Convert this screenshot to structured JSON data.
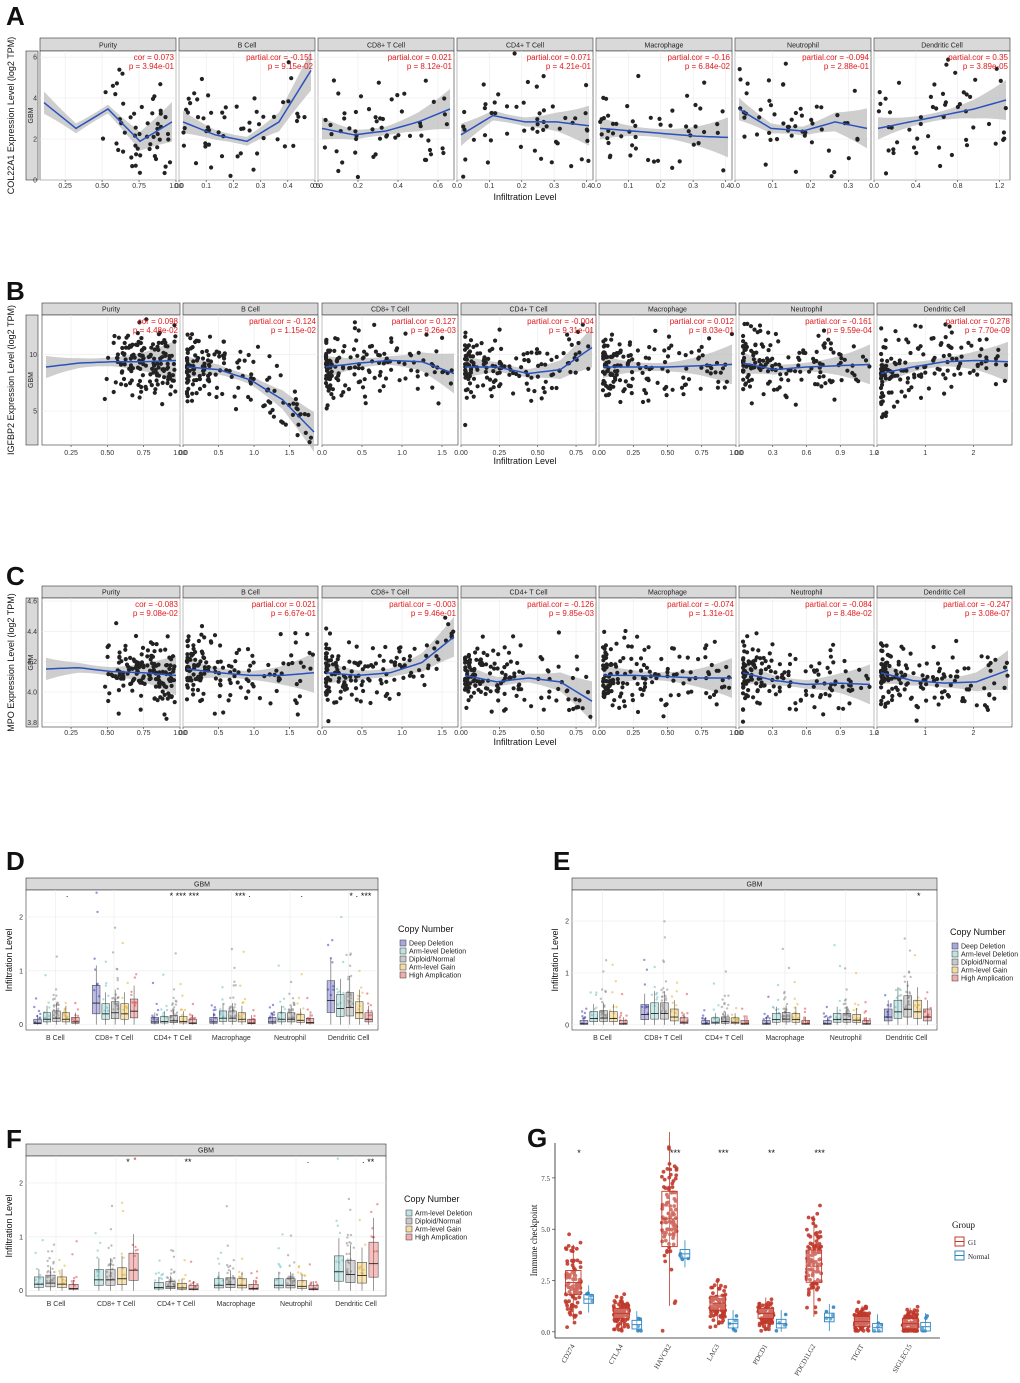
{
  "chart_data": [
    {
      "panel": "A",
      "type": "scatter",
      "ylabel": "COL22A1 Expression Level (log2 TPM)",
      "xlabel": "Infiltration Level",
      "row_label": "GBM",
      "yticks": [
        "0",
        "2",
        "4",
        "6"
      ],
      "ylim": [
        0,
        6.3
      ],
      "facets": [
        {
          "name": "Purity",
          "stat1": "cor = 0.073",
          "stat2": "p = 3.94e-01",
          "xticks": [
            "0.25",
            "0.50",
            "0.75",
            "1.00"
          ],
          "xlim": [
            0.08,
            1.0
          ],
          "xvals": [
            0.25,
            0.5,
            0.75,
            1.0
          ]
        },
        {
          "name": "B Cell",
          "stat1": "partial.cor = -0.151",
          "stat2": "p = 9.15e-02",
          "xticks": [
            "0.0",
            "0.1",
            "0.2",
            "0.3",
            "0.4",
            "0.5"
          ],
          "xlim": [
            0,
            0.5
          ],
          "xvals": [
            0,
            0.1,
            0.2,
            0.3,
            0.4,
            0.5
          ]
        },
        {
          "name": "CD8+ T Cell",
          "stat1": "partial.cor = 0.021",
          "stat2": "p = 8.12e-01",
          "xticks": [
            "0.0",
            "0.2",
            "0.4",
            "0.6"
          ],
          "xlim": [
            0,
            0.68
          ],
          "xvals": [
            0,
            0.2,
            0.4,
            0.6
          ]
        },
        {
          "name": "CD4+ T Cell",
          "stat1": "partial.cor = 0.071",
          "stat2": "p = 4.21e-01",
          "xticks": [
            "0.0",
            "0.1",
            "0.2",
            "0.3",
            "0.4"
          ],
          "xlim": [
            0,
            0.42
          ],
          "xvals": [
            0,
            0.1,
            0.2,
            0.3,
            0.4
          ]
        },
        {
          "name": "Macrophage",
          "stat1": "partial.cor = -0.16",
          "stat2": "p = 6.84e-02",
          "xticks": [
            "0.0",
            "0.1",
            "0.2",
            "0.3",
            "0.4"
          ],
          "xlim": [
            0,
            0.42
          ],
          "xvals": [
            0,
            0.1,
            0.2,
            0.3,
            0.4
          ]
        },
        {
          "name": "Neutrophil",
          "stat1": "partial.cor = -0.094",
          "stat2": "p = 2.88e-01",
          "xticks": [
            "0.0",
            "0.1",
            "0.2",
            "0.3"
          ],
          "xlim": [
            0,
            0.36
          ],
          "xvals": [
            0,
            0.1,
            0.2,
            0.3
          ]
        },
        {
          "name": "Dendritic Cell",
          "stat1": "partial.cor = 0.35",
          "stat2": "p = 3.89e-05",
          "xticks": [
            "0.0",
            "0.4",
            "0.8",
            "1.2"
          ],
          "xlim": [
            0,
            1.3
          ],
          "xvals": [
            0,
            0.4,
            0.8,
            1.2
          ]
        }
      ]
    },
    {
      "panel": "B",
      "type": "scatter",
      "ylabel": "IGFBP2 Expression Level (log2 TPM)",
      "xlabel": "Infiltration Level",
      "row_label": "GBM",
      "yticks": [
        "5",
        "10"
      ],
      "ylim": [
        2,
        13.5
      ],
      "facets": [
        {
          "name": "Purity",
          "stat1": "cor = 0.098",
          "stat2": "p = 4.48e-02",
          "xticks": [
            "0.25",
            "0.50",
            "0.75",
            "1.00"
          ],
          "xlim": [
            0.05,
            1.0
          ],
          "xvals": [
            0.25,
            0.5,
            0.75,
            1.0
          ]
        },
        {
          "name": "B Cell",
          "stat1": "partial.cor = -0.124",
          "stat2": "p = 1.15e-02",
          "xticks": [
            "0.0",
            "0.5",
            "1.0",
            "1.5"
          ],
          "xlim": [
            0,
            1.9
          ],
          "xvals": [
            0,
            0.5,
            1.0,
            1.5
          ]
        },
        {
          "name": "CD8+ T Cell",
          "stat1": "partial.cor = 0.127",
          "stat2": "p = 9.26e-03",
          "xticks": [
            "0.0",
            "0.5",
            "1.0",
            "1.5"
          ],
          "xlim": [
            0,
            1.7
          ],
          "xvals": [
            0,
            0.5,
            1.0,
            1.5
          ]
        },
        {
          "name": "CD4+ T Cell",
          "stat1": "partial.cor = -0.004",
          "stat2": "p = 9.31e-01",
          "xticks": [
            "0.00",
            "0.25",
            "0.50",
            "0.75"
          ],
          "xlim": [
            0,
            0.88
          ],
          "xvals": [
            0,
            0.25,
            0.5,
            0.75
          ]
        },
        {
          "name": "Macrophage",
          "stat1": "partial.cor = 0.012",
          "stat2": "p = 8.03e-01",
          "xticks": [
            "0.00",
            "0.25",
            "0.50",
            "0.75",
            "1.00"
          ],
          "xlim": [
            0,
            1.0
          ],
          "xvals": [
            0,
            0.25,
            0.5,
            0.75,
            1.0
          ]
        },
        {
          "name": "Neutrophil",
          "stat1": "partial.cor = -0.161",
          "stat2": "p = 9.59e-04",
          "xticks": [
            "0.0",
            "0.3",
            "0.6",
            "0.9",
            "1.2"
          ],
          "xlim": [
            0,
            1.2
          ],
          "xvals": [
            0,
            0.3,
            0.6,
            0.9,
            1.2
          ]
        },
        {
          "name": "Dendritic Cell",
          "stat1": "partial.cor = 0.278",
          "stat2": "p = 7.70e-09",
          "xticks": [
            "0",
            "1",
            "2"
          ],
          "xlim": [
            0,
            2.8
          ],
          "xvals": [
            0,
            1,
            2
          ]
        }
      ]
    },
    {
      "panel": "C",
      "type": "scatter",
      "ylabel": "MPO Expression Level (log2 TPM)",
      "xlabel": "Infiltration Level",
      "row_label": "GBM",
      "yticks": [
        "3.8",
        "4.0",
        "4.2",
        "4.4",
        "4.6"
      ],
      "ylim": [
        3.77,
        4.62
      ],
      "facets": [
        {
          "name": "Purity",
          "stat1": "cor = -0.083",
          "stat2": "p = 9.08e-02",
          "xticks": [
            "0.25",
            "0.50",
            "0.75",
            "1.00"
          ],
          "xlim": [
            0.05,
            1.0
          ],
          "xvals": [
            0.25,
            0.5,
            0.75,
            1.0
          ]
        },
        {
          "name": "B Cell",
          "stat1": "partial.cor = 0.021",
          "stat2": "p = 6.67e-01",
          "xticks": [
            "0.0",
            "0.5",
            "1.0",
            "1.5"
          ],
          "xlim": [
            0,
            1.9
          ],
          "xvals": [
            0,
            0.5,
            1.0,
            1.5
          ]
        },
        {
          "name": "CD8+ T Cell",
          "stat1": "partial.cor = -0.003",
          "stat2": "p = 9.46e-01",
          "xticks": [
            "0.0",
            "0.5",
            "1.0",
            "1.5"
          ],
          "xlim": [
            0,
            1.7
          ],
          "xvals": [
            0,
            0.5,
            1.0,
            1.5
          ]
        },
        {
          "name": "CD4+ T Cell",
          "stat1": "partial.cor = -0.126",
          "stat2": "p = 9.85e-03",
          "xticks": [
            "0.00",
            "0.25",
            "0.50",
            "0.75"
          ],
          "xlim": [
            0,
            0.88
          ],
          "xvals": [
            0,
            0.25,
            0.5,
            0.75
          ]
        },
        {
          "name": "Macrophage",
          "stat1": "partial.cor = -0.074",
          "stat2": "p = 1.31e-01",
          "xticks": [
            "0.00",
            "0.25",
            "0.50",
            "0.75",
            "1.00"
          ],
          "xlim": [
            0,
            1.0
          ],
          "xvals": [
            0,
            0.25,
            0.5,
            0.75,
            1.0
          ]
        },
        {
          "name": "Neutrophil",
          "stat1": "partial.cor = -0.084",
          "stat2": "p = 8.48e-02",
          "xticks": [
            "0.0",
            "0.3",
            "0.6",
            "0.9",
            "1.2"
          ],
          "xlim": [
            0,
            1.2
          ],
          "xvals": [
            0,
            0.3,
            0.6,
            0.9,
            1.2
          ]
        },
        {
          "name": "Dendritic Cell",
          "stat1": "partial.cor = -0.247",
          "stat2": "p = 3.08e-07",
          "xticks": [
            "0",
            "1",
            "2"
          ],
          "xlim": [
            0,
            2.8
          ],
          "xvals": [
            0,
            1,
            2
          ]
        }
      ]
    },
    {
      "panel": "D",
      "type": "box",
      "strip": "GBM",
      "ylabel": "Infiltration Level",
      "yticks": [
        "0",
        "1",
        "2"
      ],
      "ylim": [
        -0.1,
        2.5
      ],
      "categories": [
        "B Cell",
        "CD8+ T Cell",
        "CD4+ T Cell",
        "Macrophage",
        "Neutrophil",
        "Dendritic Cell"
      ],
      "legend_title": "Copy Number",
      "legend": [
        "Deep Deletion",
        "Arm-level Deletion",
        "Diploid/Normal",
        "Arm-level Gain",
        "High Amplication"
      ],
      "significance": [
        "·",
        "",
        "* *** ***",
        "*** ·",
        "·",
        "* · ***"
      ],
      "medians": [
        [
          0.03,
          0.1,
          0.12,
          0.1,
          0.05
        ],
        [
          0.4,
          0.2,
          0.22,
          0.2,
          0.25
        ],
        [
          0.05,
          0.06,
          0.07,
          0.06,
          0.03
        ],
        [
          0.05,
          0.12,
          0.12,
          0.1,
          0.03
        ],
        [
          0.05,
          0.1,
          0.1,
          0.08,
          0.04
        ],
        [
          0.45,
          0.3,
          0.32,
          0.22,
          0.1
        ]
      ]
    },
    {
      "panel": "E",
      "type": "box",
      "strip": "GBM",
      "ylabel": "Infiltration Level",
      "yticks": [
        "0",
        "1",
        "2"
      ],
      "ylim": [
        -0.1,
        2.6
      ],
      "categories": [
        "B Cell",
        "CD8+ T Cell",
        "CD4+ T Cell",
        "Macrophage",
        "Neutrophil",
        "Dendritic Cell"
      ],
      "legend_title": "Copy Number",
      "legend": [
        "Deep Deletion",
        "Arm-level Deletion",
        "Diploid/Normal",
        "Arm-level Gain",
        "High Amplication"
      ],
      "significance": [
        "",
        "",
        "",
        "",
        "",
        "*"
      ],
      "medians": [
        [
          0.02,
          0.12,
          0.13,
          0.12,
          0.02
        ],
        [
          0.2,
          0.22,
          0.22,
          0.15,
          0.05
        ],
        [
          0.02,
          0.05,
          0.06,
          0.05,
          0.02
        ],
        [
          0.02,
          0.1,
          0.11,
          0.1,
          0.02
        ],
        [
          0.02,
          0.1,
          0.1,
          0.09,
          0.02
        ],
        [
          0.15,
          0.25,
          0.3,
          0.25,
          0.15
        ]
      ]
    },
    {
      "panel": "F",
      "type": "box",
      "strip": "GBM",
      "ylabel": "Infiltration Level",
      "yticks": [
        "0",
        "1",
        "2"
      ],
      "ylim": [
        -0.1,
        2.5
      ],
      "categories": [
        "B Cell",
        "CD8+ T Cell",
        "CD4+ T Cell",
        "Macrophage",
        "Neutrophil",
        "Dendritic Cell"
      ],
      "legend_title": "Copy Number",
      "legend": [
        "Arm-level Deletion",
        "Diploid/Normal",
        "Arm-level Gain",
        "High Amplication"
      ],
      "significance": [
        "",
        "*",
        "**",
        "",
        "·",
        "· **"
      ],
      "medians": [
        [
          0.12,
          0.14,
          0.12,
          0.04
        ],
        [
          0.2,
          0.2,
          0.22,
          0.38
        ],
        [
          0.06,
          0.07,
          0.05,
          0.03
        ],
        [
          0.1,
          0.11,
          0.1,
          0.04
        ],
        [
          0.1,
          0.1,
          0.08,
          0.03
        ],
        [
          0.35,
          0.3,
          0.28,
          0.5
        ]
      ]
    },
    {
      "panel": "G",
      "type": "box",
      "ylabel": "Immune checkpoint",
      "yticks": [
        "0.0",
        "2.5",
        "5.0",
        "7.5"
      ],
      "ylim": [
        -0.3,
        9.2
      ],
      "categories": [
        "CD274",
        "CTLA4",
        "HAVCR2",
        "LAG3",
        "PDCD1",
        "PDCD1LG2",
        "TIGIT",
        "SIGLEC15"
      ],
      "legend_title": "Group",
      "legend": [
        "G1",
        "Normal"
      ],
      "significance": [
        "*",
        "",
        "***",
        "***",
        "**",
        "***",
        "",
        ""
      ],
      "series": [
        {
          "name": "G1",
          "values": [
            2.4,
            0.9,
            5.5,
            1.4,
            0.9,
            3.2,
            0.5,
            0.4
          ]
        },
        {
          "name": "Normal",
          "values": [
            1.6,
            0.35,
            3.8,
            0.4,
            0.4,
            0.7,
            0.2,
            0.25
          ]
        }
      ]
    }
  ],
  "colors": {
    "dot": "#222222",
    "fit_line": "#2a52be",
    "band": "#bdbdbd",
    "stat_red": "#e31a1c",
    "strip": "#d9d9d9",
    "cn": [
      "#3f3fb8",
      "#6ec0c0",
      "#888888",
      "#e8b230",
      "#e04a4a"
    ],
    "g1": "#c0392b",
    "normal": "#2e86c1"
  }
}
